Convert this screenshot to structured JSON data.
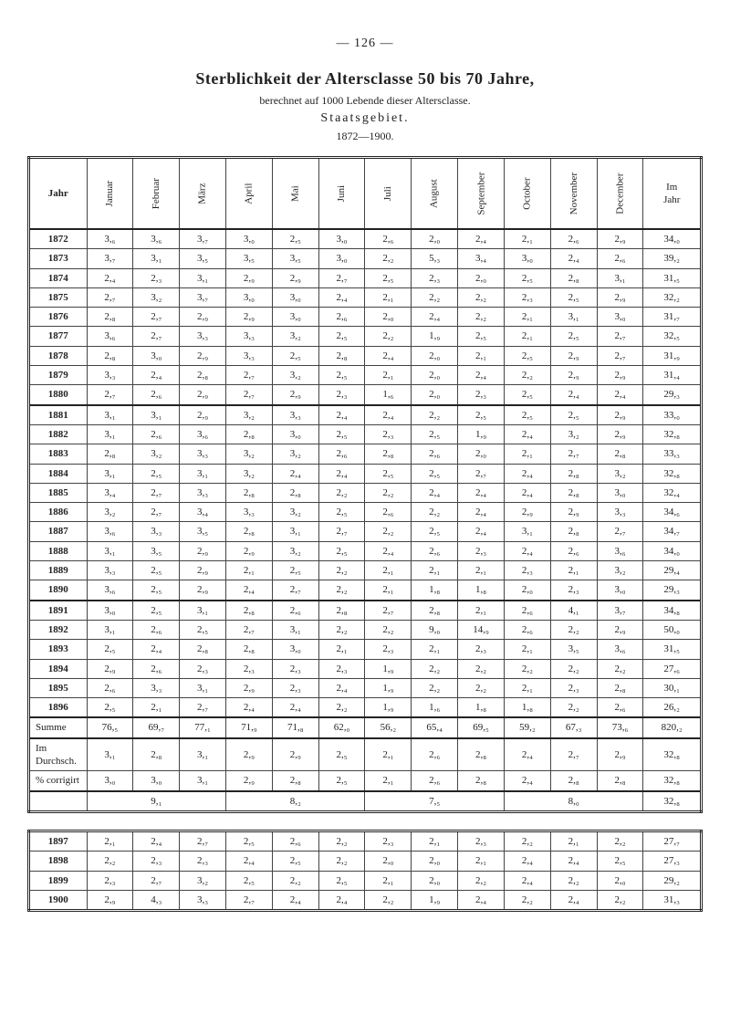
{
  "page_number": "— 126 —",
  "title": "Sterblichkeit der Altersclasse 50 bis 70 Jahre,",
  "subtitle": "berechnet auf 1000 Lebende dieser Altersclasse.",
  "subtitle2": "Staatsgebiet.",
  "years_range": "1872—1900.",
  "columns": {
    "jahr": "Jahr",
    "januar": "Januar",
    "februar": "Februar",
    "marz": "März",
    "april": "April",
    "mai": "Mai",
    "juni": "Juni",
    "juli": "Juli",
    "august": "August",
    "september": "September",
    "october": "October",
    "november": "November",
    "december": "December",
    "imjahr": "Im\nJahr"
  },
  "main_rows": [
    [
      "1872",
      "3,₆",
      "3,₆",
      "3,₇",
      "3,₀",
      "2,₅",
      "3,₀",
      "2,₆",
      "2,₀",
      "2,₄",
      "2,₁",
      "2,₆",
      "2,₉",
      "34,₀"
    ],
    [
      "1873",
      "3,₇",
      "3,₁",
      "3,₅",
      "3,₅",
      "3,₅",
      "3,₀",
      "2,₂",
      "5,₃",
      "3,₄",
      "3,₀",
      "2,₄",
      "2,₆",
      "39,₂"
    ],
    [
      "1874",
      "2,₄",
      "2,₃",
      "3,₁",
      "2,₉",
      "2,₉",
      "2,₇",
      "2,₅",
      "2,₃",
      "2,₀",
      "2,₅",
      "2,₈",
      "3,₁",
      "31,₅"
    ],
    [
      "1875",
      "2,₇",
      "3,₂",
      "3,₇",
      "3,₀",
      "3,₀",
      "2,₄",
      "2,₁",
      "2,₂",
      "2,₂",
      "2,₃",
      "2,₅",
      "2,₉",
      "32,₂"
    ],
    [
      "1876",
      "2,₈",
      "2,₇",
      "2,₉",
      "2,₉",
      "3,₀",
      "2,₆",
      "2,₀",
      "2,₄",
      "2,₂",
      "2,₁",
      "3,₁",
      "3,₀",
      "31,₇"
    ],
    [
      "1877",
      "3,₆",
      "2,₇",
      "3,₃",
      "3,₃",
      "3,₂",
      "2,₅",
      "2,₂",
      "1,₉",
      "2,₅",
      "2,₁",
      "2,₅",
      "2,₇",
      "32,₅"
    ],
    [
      "1878",
      "2,₈",
      "3,₀",
      "2,₉",
      "3,₃",
      "2,₅",
      "2,₈",
      "2,₄",
      "2,₀",
      "2,₁",
      "2,₅",
      "2,₉",
      "2,₇",
      "31,₉"
    ],
    [
      "1879",
      "3,₃",
      "2,₄",
      "2,₈",
      "2,₇",
      "3,₂",
      "2,₅",
      "2,₁",
      "2,₀",
      "2,₄",
      "2,₂",
      "2,₉",
      "2,₉",
      "31,₄"
    ],
    [
      "1880",
      "2,₇",
      "2,₆",
      "2,₉",
      "2,₇",
      "2,₉",
      "2,₃",
      "1,₆",
      "2,₀",
      "2,₃",
      "2,₅",
      "2,₄",
      "2,₄",
      "29,₃"
    ],
    [
      "1881",
      "3,₁",
      "3,₁",
      "2,₉",
      "3,₂",
      "3,₃",
      "2,₄",
      "2,₄",
      "2,₂",
      "2,₅",
      "2,₅",
      "2,₅",
      "2,₉",
      "33,₀"
    ],
    [
      "1882",
      "3,₁",
      "2,₆",
      "3,₆",
      "2,₈",
      "3,₀",
      "2,₅",
      "2,₃",
      "2,₅",
      "1,₉",
      "2,₄",
      "3,₂",
      "2,₉",
      "32,₈"
    ],
    [
      "1883",
      "2,₈",
      "3,₂",
      "3,₃",
      "3,₂",
      "3,₂",
      "2,₆",
      "2,₈",
      "2,₆",
      "2,₀",
      "2,₁",
      "2,₇",
      "2,₈",
      "33,₃"
    ],
    [
      "1884",
      "3,₁",
      "2,₅",
      "3,₁",
      "3,₂",
      "2,₄",
      "2,₄",
      "2,₅",
      "2,₅",
      "2,₇",
      "2,₄",
      "2,₈",
      "3,₂",
      "32,₈"
    ],
    [
      "1885",
      "3,₄",
      "2,₇",
      "3,₃",
      "2,₈",
      "2,₈",
      "2,₂",
      "2,₂",
      "2,₄",
      "2,₄",
      "2,₄",
      "2,₈",
      "3,₀",
      "32,₄"
    ],
    [
      "1886",
      "3,₂",
      "2,₇",
      "3,₄",
      "3,₃",
      "3,₂",
      "2,₅",
      "2,₆",
      "2,₂",
      "2,₄",
      "2,₉",
      "2,₉",
      "3,₃",
      "34,₆"
    ],
    [
      "1887",
      "3,₆",
      "3,₃",
      "3,₅",
      "2,₈",
      "3,₁",
      "2,₇",
      "2,₂",
      "2,₅",
      "2,₄",
      "3,₁",
      "2,₈",
      "2,₇",
      "34,₇"
    ],
    [
      "1888",
      "3,₁",
      "3,₅",
      "2,₉",
      "2,₉",
      "3,₂",
      "2,₅",
      "2,₄",
      "2,₆",
      "2,₃",
      "2,₄",
      "2,₆",
      "3,₆",
      "34,₀"
    ],
    [
      "1889",
      "3,₃",
      "2,₅",
      "2,₉",
      "2,₁",
      "2,₅",
      "2,₂",
      "2,₁",
      "2,₁",
      "2,₁",
      "2,₃",
      "2,₁",
      "3,₂",
      "29,₄"
    ],
    [
      "1890",
      "3,₆",
      "2,₅",
      "2,₉",
      "2,₄",
      "2,₇",
      "2,₂",
      "2,₁",
      "1,₈",
      "1,₈",
      "2,₀",
      "2,₃",
      "3,₀",
      "29,₃"
    ],
    [
      "1891",
      "3,₀",
      "2,₅",
      "3,₁",
      "2,₈",
      "2,₆",
      "2,₈",
      "2,₇",
      "2,₈",
      "2,₁",
      "2,₆",
      "4,₁",
      "3,₇",
      "34,₈"
    ],
    [
      "1892",
      "3,₁",
      "2,₆",
      "2,₅",
      "2,₇",
      "3,₁",
      "2,₂",
      "2,₂",
      "9,₀",
      "14,₉",
      "2,₆",
      "2,₂",
      "2,₉",
      "50,₀"
    ],
    [
      "1893",
      "2,₅",
      "2,₄",
      "2,₈",
      "2,₈",
      "3,₀",
      "2,₁",
      "2,₃",
      "2,₁",
      "2,₃",
      "2,₁",
      "3,₅",
      "3,₆",
      "31,₅"
    ],
    [
      "1894",
      "2,₉",
      "2,₆",
      "2,₃",
      "2,₃",
      "2,₃",
      "2,₃",
      "1,₉",
      "2,₂",
      "2,₂",
      "2,₂",
      "2,₂",
      "2,₂",
      "27,₆"
    ],
    [
      "1895",
      "2,₆",
      "3,₃",
      "3,₁",
      "2,₉",
      "2,₃",
      "2,₄",
      "1,₉",
      "2,₂",
      "2,₂",
      "2,₁",
      "2,₃",
      "2,₈",
      "30,₁"
    ],
    [
      "1896",
      "2,₅",
      "2,₁",
      "2,₇",
      "2,₄",
      "2,₄",
      "2,₂",
      "1,₉",
      "1,₆",
      "1,₈",
      "1,₈",
      "2,₂",
      "2,₆",
      "26,₂"
    ]
  ],
  "summary_rows": [
    [
      "Summe",
      "76,₅",
      "69,₇",
      "77,₁",
      "71,₉",
      "71,₈",
      "62,₀",
      "56,₂",
      "65,₄",
      "69,₅",
      "59,₂",
      "67,₃",
      "73,₆",
      "820,₂"
    ],
    [
      "Im Durchsch.",
      "3,₁",
      "2,₈",
      "3,₁",
      "2,₉",
      "2,₉",
      "2,₅",
      "2,₁",
      "2,₆",
      "2,₈",
      "2,₄",
      "2,₇",
      "2,₉",
      "32,₈"
    ],
    [
      "% corrigirt",
      "3,₀",
      "3,₀",
      "3,₁",
      "2,₉",
      "2,₈",
      "2,₅",
      "2,₁",
      "2,₆",
      "2,₈",
      "2,₄",
      "2,₈",
      "2,₈",
      "32,₈"
    ]
  ],
  "mini_row": [
    "",
    "9,₁",
    "",
    "",
    "8,₂",
    "",
    "",
    "7,₅",
    "",
    "",
    "8,₀",
    "",
    "32,₈"
  ],
  "bottom_rows": [
    [
      "1897",
      "2,₁",
      "2,₄",
      "2,₇",
      "2,₅",
      "2,₆",
      "2,₂",
      "2,₃",
      "2,₁",
      "2,₃",
      "2,₂",
      "2,₁",
      "2,₂",
      "27,₇"
    ],
    [
      "1898",
      "2,₂",
      "2,₃",
      "2,₃",
      "2,₄",
      "2,₅",
      "2,₂",
      "2,₀",
      "2,₀",
      "2,₁",
      "2,₄",
      "2,₄",
      "2,₅",
      "27,₃"
    ],
    [
      "1899",
      "2,₃",
      "2,₇",
      "3,₂",
      "2,₅",
      "2,₂",
      "2,₅",
      "2,₁",
      "2,₀",
      "2,₂",
      "2,₄",
      "2,₂",
      "2,₀",
      "29,₂"
    ],
    [
      "1900",
      "2,₉",
      "4,₃",
      "3,₃",
      "2,₇",
      "2,₄",
      "2,₄",
      "2,₂",
      "1,₉",
      "2,₄",
      "2,₂",
      "2,₄",
      "2,₂",
      "31,₃"
    ]
  ]
}
